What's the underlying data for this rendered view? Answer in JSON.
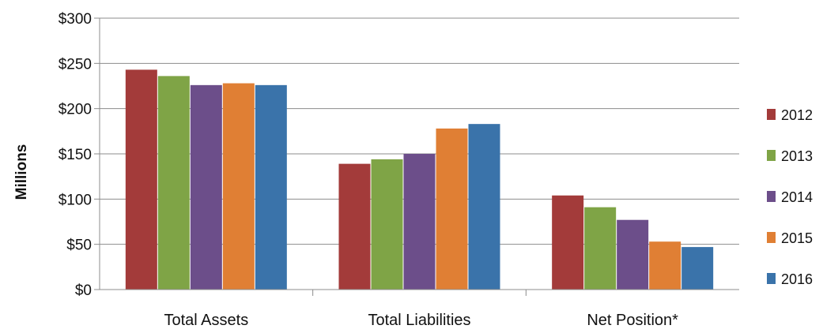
{
  "chart_data": {
    "type": "bar",
    "ylabel": "Millions",
    "xlabel": "",
    "ylim": [
      0,
      300
    ],
    "y_ticks": [
      "$0",
      "$50",
      "$100",
      "$150",
      "$200",
      "$250",
      "$300"
    ],
    "y_tick_values": [
      0,
      50,
      100,
      150,
      200,
      250,
      300
    ],
    "categories": [
      "Total Assets",
      "Total Liabilities",
      "Net Position*"
    ],
    "series": [
      {
        "name": "2012",
        "color": "#A33B3A",
        "values": [
          243,
          139,
          104
        ]
      },
      {
        "name": "2013",
        "color": "#7FA446",
        "values": [
          236,
          144,
          91
        ]
      },
      {
        "name": "2014",
        "color": "#6C4E8A",
        "values": [
          226,
          150,
          77
        ]
      },
      {
        "name": "2015",
        "color": "#E07F34",
        "values": [
          228,
          178,
          53
        ]
      },
      {
        "name": "2016",
        "color": "#3A73AA",
        "values": [
          226,
          183,
          47
        ]
      }
    ],
    "grid": true,
    "legend_position": "right"
  }
}
